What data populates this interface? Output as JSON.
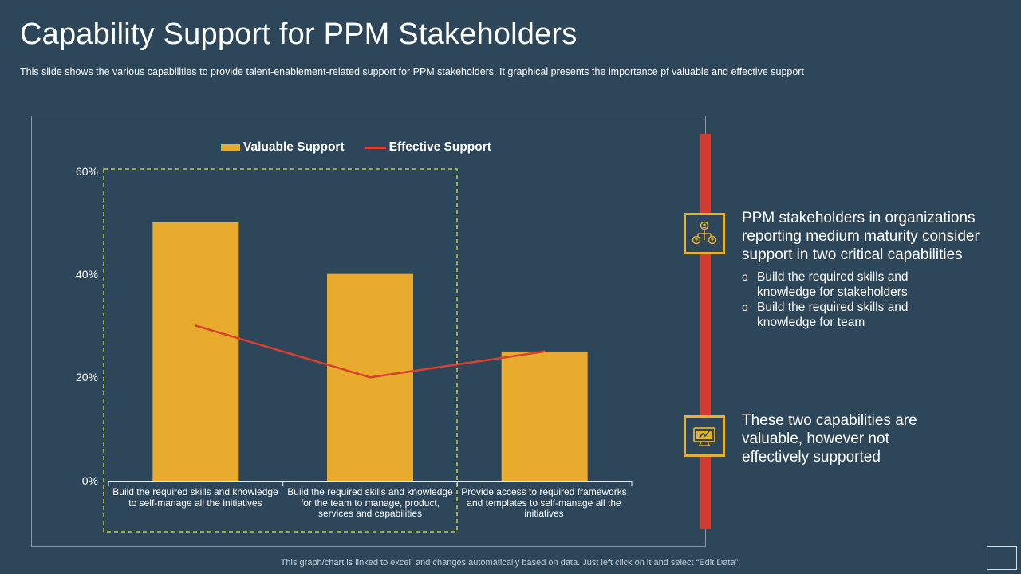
{
  "slide": {
    "title": "Capability Support for PPM Stakeholders",
    "subtitle": "This slide shows the various  capabilities to provide  talent-enablement-related  support for PPM stakeholders. It graphical  presents the importance  pf valuable  and effective  support",
    "footnote": "This graph/chart is linked to excel, and changes automatically based on data. Just left click on it and select “Edit Data”."
  },
  "colors": {
    "background": "#2d4659",
    "bar": "#e8ab2e",
    "line": "#d9402f",
    "timeline": "#d13c30",
    "icon_border": "#e5b030",
    "highlight_dash": "#e6e04a"
  },
  "chart_data": {
    "type": "bar",
    "categories": [
      "Build the required skills and knowledge to self-manage all the initiatives",
      "Build the required skills and knowledge for the team to manage, product, services and capabilities",
      "Provide access to required frameworks and templates to self-manage all the initiatives"
    ],
    "category_lines": [
      [
        "Build the required skills and knowledge",
        "to self-manage all the initiatives"
      ],
      [
        "Build the required skills and knowledge",
        "for the team to manage, product,",
        "services and capabilities"
      ],
      [
        "Provide access to required frameworks",
        "and templates to self-manage all the",
        "initiatives"
      ]
    ],
    "series": [
      {
        "name": "Valuable Support",
        "kind": "bar",
        "values": [
          50,
          40,
          25
        ]
      },
      {
        "name": "Effective Support",
        "kind": "line",
        "values": [
          30,
          20,
          25
        ]
      }
    ],
    "yticks": [
      "0%",
      "20%",
      "40%",
      "60%"
    ],
    "ylim": [
      0,
      60
    ],
    "legend_position": "top",
    "grid": false,
    "highlight": "dashed box around the first two categories"
  },
  "panel": {
    "item1": {
      "icon": "org-network-icon",
      "heading": "PPM stakeholders in organizations reporting medium maturity consider support in two critical capabilities",
      "heading_lines": [
        "PPM stakeholders in organizations",
        "reporting medium maturity consider",
        "support in two critical capabilities"
      ],
      "bullets": [
        [
          "Build the required skills and",
          "knowledge for stakeholders"
        ],
        [
          "Build the required skills and",
          "knowledge for team"
        ]
      ]
    },
    "item2": {
      "icon": "presentation-monitor-icon",
      "heading": "These two capabilities are valuable, however not effectively supported",
      "heading_lines": [
        "These two capabilities are",
        "valuable, however not",
        "effectively supported"
      ]
    }
  }
}
